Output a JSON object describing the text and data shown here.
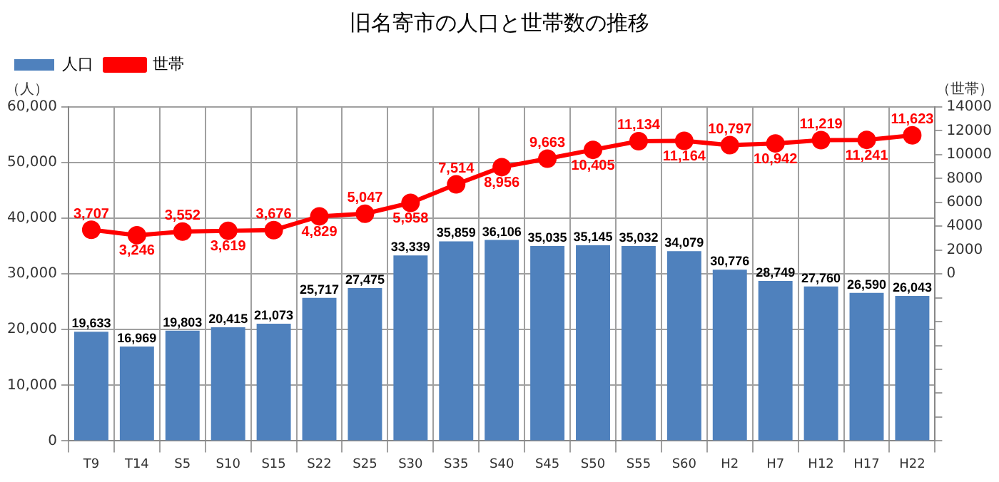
{
  "chart_data": {
    "type": "bar",
    "title": "旧名寄市の人口と世帯数の推移",
    "ylabel": "（人）",
    "y2label": "（世帯）",
    "categories": [
      "T9",
      "T14",
      "S5",
      "S10",
      "S15",
      "S22",
      "S25",
      "S30",
      "S35",
      "S40",
      "S45",
      "S50",
      "S55",
      "S60",
      "H2",
      "H7",
      "H12",
      "H17",
      "H22"
    ],
    "series": [
      {
        "name": "人口",
        "color": "#4f81bd",
        "values": [
          19633,
          16969,
          19803,
          20415,
          21073,
          25717,
          27475,
          33339,
          35859,
          36106,
          35035,
          35145,
          35032,
          34079,
          30776,
          28749,
          27760,
          26590,
          26043
        ],
        "value_labels": [
          "19,633",
          "16,969",
          "19,803",
          "20,415",
          "21,073",
          "25,717",
          "27,475",
          "33,339",
          "35,859",
          "36,106",
          "35,035",
          "35,145",
          "35,032",
          "34,079",
          "30,776",
          "28,749",
          "27,760",
          "26,590",
          "26,043"
        ]
      },
      {
        "name": "世帯",
        "type": "line",
        "axis": "y2",
        "color": "#ff0000",
        "marker": "circle",
        "values": [
          3707,
          3246,
          3552,
          3619,
          3676,
          4829,
          5047,
          5958,
          7514,
          8956,
          9663,
          10405,
          11134,
          11164,
          10797,
          10942,
          11219,
          11241,
          11623
        ],
        "value_labels": [
          "3,707",
          "3,246",
          "3,552",
          "3,619",
          "3,676",
          "4,829",
          "5,047",
          "5,958",
          "7,514",
          "8,956",
          "9,663",
          "10,405",
          "11,134",
          "11,164",
          "10,797",
          "10,942",
          "11,219",
          "11,241",
          "11,623"
        ]
      }
    ],
    "ylim": [
      0,
      60000
    ],
    "yticks": [
      {
        "value": 0,
        "label": "0"
      },
      {
        "value": 10000,
        "label": "10,000"
      },
      {
        "value": 20000,
        "label": "20,000"
      },
      {
        "value": 30000,
        "label": "30,000"
      },
      {
        "value": 40000,
        "label": "40,000"
      },
      {
        "value": 50000,
        "label": "50,000"
      },
      {
        "value": 60000,
        "label": "60,000"
      }
    ],
    "y2lim": [
      -14000,
      14000
    ],
    "y2ticks": [
      {
        "value": -14000,
        "label": null
      },
      {
        "value": -12000,
        "label": null
      },
      {
        "value": -10000,
        "label": null
      },
      {
        "value": -8000,
        "label": null
      },
      {
        "value": -6000,
        "label": null
      },
      {
        "value": -4000,
        "label": null
      },
      {
        "value": -2000,
        "label": null
      },
      0,
      2000,
      4000,
      6000,
      8000,
      10000,
      12000,
      14000
    ],
    "grid": true,
    "legend": "top left"
  }
}
